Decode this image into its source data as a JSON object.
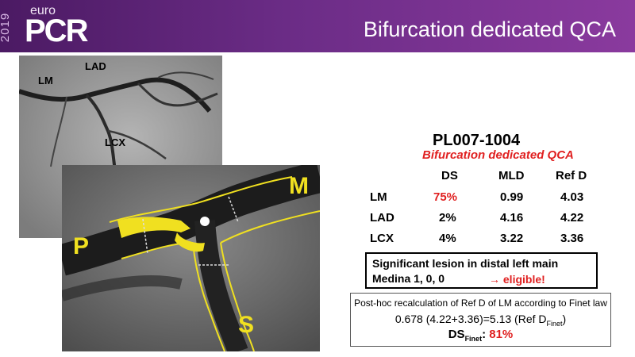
{
  "header": {
    "logo_year": "2019",
    "logo_top": "euro",
    "logo_main": "PCR",
    "title": "Bifurcation dedicated QCA"
  },
  "angiogram": {
    "labels": {
      "lm": "LM",
      "lad": "LAD",
      "lcx": "LCX"
    },
    "zoom_labels": {
      "m": "M",
      "p": "P",
      "s": "S"
    }
  },
  "case": {
    "id": "PL007-1004",
    "subtitle": "Bifurcation dedicated QCA"
  },
  "table": {
    "headers": [
      "DS",
      "MLD",
      "Ref D"
    ],
    "rows": [
      {
        "segment": "LM",
        "ds": "75%",
        "mld": "0.99",
        "refd": "4.03"
      },
      {
        "segment": "LAD",
        "ds": "2%",
        "mld": "4.16",
        "refd": "4.22"
      },
      {
        "segment": "LCX",
        "ds": "4%",
        "mld": "3.22",
        "refd": "3.36"
      }
    ]
  },
  "lesion_box": {
    "line1": "Significant lesion in distal left main",
    "line2": "Medina 1, 0, 0",
    "eligible": "→ eligible!"
  },
  "finet_box": {
    "line1": "Post-hoc recalculation of Ref D of LM according to Finet law",
    "formula": "0.678 (4.22+3.36)=5.13 (Ref D",
    "sub": "Finet",
    "close": ")",
    "ds_label": "DS",
    "ds_sub": "Finet",
    "ds_colon": ": ",
    "ds_value": "81%"
  },
  "colors": {
    "header": "#6b2c86",
    "accent_red": "#e02020",
    "contour": "#f0e020"
  }
}
